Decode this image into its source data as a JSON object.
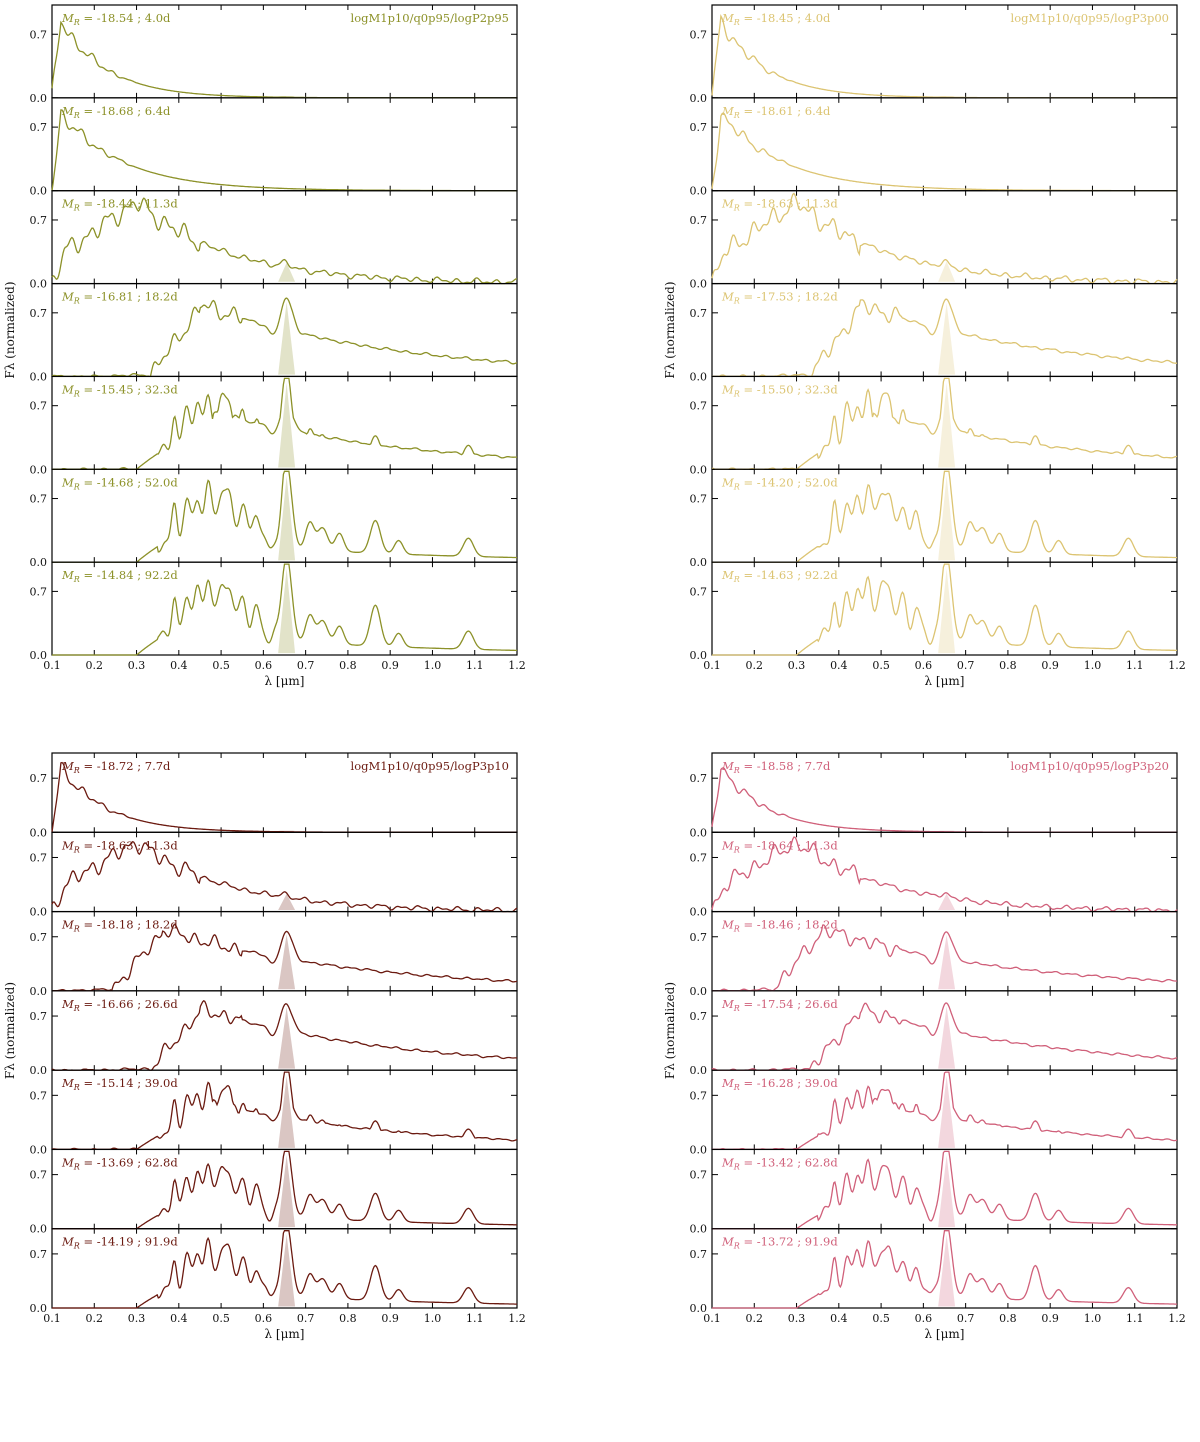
{
  "chart_data": [
    {
      "type": "line",
      "model": "logM1p10/q0p95/logP2p95",
      "color": "#8c9128",
      "xlabel": "λ [μm]",
      "ylabel": "Fλ (normalized)",
      "xlim": [
        0.1,
        1.2
      ],
      "ylim": [
        0,
        1.0
      ],
      "xticks": [
        "0.1",
        "0.2",
        "0.3",
        "0.4",
        "0.5",
        "0.6",
        "0.7",
        "0.8",
        "0.9",
        "1.0",
        "1.1",
        "1.2"
      ],
      "yticks": [
        "0.0",
        "0.7"
      ],
      "panels": [
        {
          "mag": "-18.54",
          "epoch": "4.0d"
        },
        {
          "mag": "-18.68",
          "epoch": "6.4d"
        },
        {
          "mag": "-18.44",
          "epoch": "11.3d"
        },
        {
          "mag": "-16.81",
          "epoch": "18.2d"
        },
        {
          "mag": "-15.45",
          "epoch": "32.3d"
        },
        {
          "mag": "-14.68",
          "epoch": "52.0d"
        },
        {
          "mag": "-14.84",
          "epoch": "92.2d"
        }
      ]
    },
    {
      "type": "line",
      "model": "logM1p10/q0p95/logP3p00",
      "color": "#dcc472",
      "xlabel": "λ [μm]",
      "ylabel": "Fλ (normalized)",
      "xlim": [
        0.1,
        1.2
      ],
      "ylim": [
        0,
        1.0
      ],
      "xticks": [
        "0.1",
        "0.2",
        "0.3",
        "0.4",
        "0.5",
        "0.6",
        "0.7",
        "0.8",
        "0.9",
        "1.0",
        "1.1",
        "1.2"
      ],
      "yticks": [
        "0.0",
        "0.7"
      ],
      "panels": [
        {
          "mag": "-18.45",
          "epoch": "4.0d"
        },
        {
          "mag": "-18.61",
          "epoch": "6.4d"
        },
        {
          "mag": "-18.63",
          "epoch": "11.3d"
        },
        {
          "mag": "-17.53",
          "epoch": "18.2d"
        },
        {
          "mag": "-15.50",
          "epoch": "32.3d"
        },
        {
          "mag": "-14.20",
          "epoch": "52.0d"
        },
        {
          "mag": "-14.63",
          "epoch": "92.2d"
        }
      ]
    },
    {
      "type": "line",
      "model": "logM1p10/q0p95/logP3p10",
      "color": "#6b1a10",
      "xlabel": "λ [μm]",
      "ylabel": "Fλ (normalized)",
      "xlim": [
        0.1,
        1.2
      ],
      "ylim": [
        0,
        1.0
      ],
      "xticks": [
        "0.1",
        "0.2",
        "0.3",
        "0.4",
        "0.5",
        "0.6",
        "0.7",
        "0.8",
        "0.9",
        "1.0",
        "1.1",
        "1.2"
      ],
      "yticks": [
        "0.0",
        "0.7"
      ],
      "panels": [
        {
          "mag": "-18.72",
          "epoch": "7.7d"
        },
        {
          "mag": "-18.63",
          "epoch": "11.3d"
        },
        {
          "mag": "-18.18",
          "epoch": "18.2d"
        },
        {
          "mag": "-16.66",
          "epoch": "26.6d"
        },
        {
          "mag": "-15.14",
          "epoch": "39.0d"
        },
        {
          "mag": "-13.69",
          "epoch": "62.8d"
        },
        {
          "mag": "-14.19",
          "epoch": "91.9d"
        }
      ]
    },
    {
      "type": "line",
      "model": "logM1p10/q0p95/logP3p20",
      "color": "#d0607a",
      "xlabel": "λ [μm]",
      "ylabel": "Fλ (normalized)",
      "xlim": [
        0.1,
        1.2
      ],
      "ylim": [
        0,
        1.0
      ],
      "xticks": [
        "0.1",
        "0.2",
        "0.3",
        "0.4",
        "0.5",
        "0.6",
        "0.7",
        "0.8",
        "0.9",
        "1.0",
        "1.1",
        "1.2"
      ],
      "yticks": [
        "0.0",
        "0.7"
      ],
      "panels": [
        {
          "mag": "-18.58",
          "epoch": "7.7d"
        },
        {
          "mag": "-18.64",
          "epoch": "11.3d"
        },
        {
          "mag": "-18.46",
          "epoch": "18.2d"
        },
        {
          "mag": "-17.54",
          "epoch": "26.6d"
        },
        {
          "mag": "-16.28",
          "epoch": "39.0d"
        },
        {
          "mag": "-13.42",
          "epoch": "62.8d"
        },
        {
          "mag": "-13.72",
          "epoch": "91.9d"
        }
      ]
    }
  ]
}
